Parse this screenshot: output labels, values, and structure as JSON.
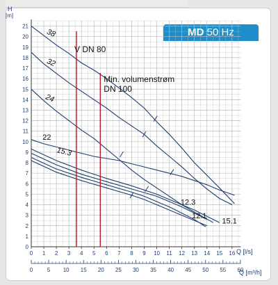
{
  "badge": {
    "model": "MD",
    "freq": "50 Hz",
    "color": "#1d8ec9"
  },
  "chart_data": {
    "type": "line",
    "title": "MD 50 Hz",
    "ylabel": "H",
    "yunit": "[m]",
    "xlabel": "Q [l/s]",
    "x2label": "Q [m³/h]",
    "xlim": [
      0,
      16.7
    ],
    "ylim": [
      0,
      21.5
    ],
    "xticks": [
      0,
      1,
      2,
      3,
      4,
      5,
      6,
      7,
      8,
      9,
      10,
      11,
      12,
      13,
      14,
      15,
      16
    ],
    "x2ticks": [
      0,
      5,
      10,
      15,
      20,
      25,
      30,
      35,
      40,
      45,
      50,
      55,
      60
    ],
    "yticks": [
      0,
      1,
      2,
      3,
      4,
      5,
      6,
      7,
      8,
      9,
      10,
      11,
      12,
      13,
      14,
      15,
      16,
      17,
      18,
      19,
      20,
      21
    ],
    "grid": true,
    "colors": {
      "curve": "#1e3f6e",
      "limit": "#c4162a",
      "grid": "#bbbbbb"
    },
    "vertical_lines": [
      {
        "label": "V DN 80",
        "x": 3.6
      },
      {
        "label": "Min. volumenstrøm DN 100",
        "label_line1": "Min. volumenstrøm",
        "label_line2": "DN 100",
        "x": 5.5
      }
    ],
    "series": [
      {
        "name": "38",
        "x": [
          0,
          1,
          2,
          3,
          4,
          5,
          6,
          7,
          8,
          9,
          10,
          11,
          12,
          13,
          14,
          15,
          16.2
        ],
        "y": [
          21.0,
          20.1,
          19.2,
          18.4,
          17.5,
          16.8,
          16.0,
          15.1,
          14.2,
          13.2,
          11.9,
          10.7,
          9.4,
          8.0,
          6.8,
          5.6,
          4.1
        ]
      },
      {
        "name": "32",
        "x": [
          0,
          1,
          2,
          3,
          4,
          5,
          6,
          7,
          8,
          9,
          10,
          11,
          12,
          13,
          14,
          15,
          16.0
        ],
        "y": [
          18.5,
          17.4,
          16.5,
          15.6,
          14.8,
          14.0,
          13.2,
          12.3,
          11.5,
          10.7,
          9.6,
          8.6,
          7.6,
          6.5,
          5.5,
          4.6,
          4.0
        ]
      },
      {
        "name": "24",
        "x": [
          0,
          1,
          2,
          3,
          4,
          5,
          6,
          7,
          8,
          9,
          10,
          11,
          12,
          13,
          14.5
        ],
        "y": [
          15.0,
          13.9,
          12.9,
          12.0,
          11.1,
          10.3,
          9.3,
          8.3,
          7.3,
          6.4,
          5.6,
          4.8,
          4.0,
          3.3,
          2.3
        ]
      },
      {
        "name": "22",
        "x": [
          0,
          1,
          2,
          3,
          4,
          5,
          6,
          7,
          8,
          9,
          10,
          11,
          12,
          13,
          14,
          15,
          16.2
        ],
        "y": [
          10.2,
          9.8,
          9.5,
          9.2,
          8.9,
          8.6,
          8.4,
          8.2,
          7.9,
          7.6,
          7.3,
          7.0,
          6.7,
          6.3,
          5.9,
          5.4,
          4.9
        ]
      },
      {
        "name": "15.1",
        "x": [
          0,
          2,
          4,
          6,
          8,
          10,
          11,
          12,
          13,
          14,
          15.0
        ],
        "y": [
          9.3,
          8.2,
          7.3,
          6.5,
          5.8,
          5.0,
          4.5,
          4.0,
          3.5,
          2.9,
          2.3
        ]
      },
      {
        "name": "15.3",
        "x": [
          0,
          2,
          4,
          6,
          8,
          10,
          11,
          12,
          13,
          14.0
        ],
        "y": [
          8.9,
          7.8,
          6.9,
          6.2,
          5.5,
          4.8,
          4.3,
          3.8,
          3.2,
          2.6
        ]
      },
      {
        "name": "12.3",
        "x": [
          0,
          2,
          4,
          6,
          8,
          9,
          10,
          11,
          12,
          13,
          13.9
        ],
        "y": [
          8.5,
          7.4,
          6.6,
          5.9,
          5.2,
          4.8,
          4.3,
          3.8,
          3.2,
          2.6,
          1.9
        ]
      },
      {
        "name": "12.1",
        "x": [
          0,
          2,
          4,
          6,
          8,
          9,
          10,
          11,
          12,
          13,
          14.0
        ],
        "y": [
          8.2,
          7.1,
          6.3,
          5.6,
          4.9,
          4.5,
          4.0,
          3.5,
          3.0,
          2.5,
          2.0
        ]
      }
    ],
    "curve_labels": [
      {
        "name": "38",
        "x": 1.2,
        "y": 20.3,
        "rotate": 24
      },
      {
        "name": "32",
        "x": 1.2,
        "y": 17.5,
        "rotate": 24
      },
      {
        "name": "24",
        "x": 1.1,
        "y": 14.1,
        "rotate": 24
      },
      {
        "name": "22",
        "x": 0.9,
        "y": 10.2,
        "rotate": 0
      },
      {
        "name": "15.3",
        "x": 2.0,
        "y": 9.0,
        "rotate": 14
      },
      {
        "name": "12.3",
        "x": 11.9,
        "y": 4.0,
        "rotate": 0
      },
      {
        "name": "12.1",
        "x": 12.8,
        "y": 2.7,
        "rotate": 0
      },
      {
        "name": "15.1",
        "x": 15.2,
        "y": 2.2,
        "rotate": 0
      }
    ],
    "markers": [
      {
        "x": 9.9,
        "y": 12.2
      },
      {
        "x": 9.0,
        "y": 10.7
      },
      {
        "x": 7.2,
        "y": 8.8
      },
      {
        "x": 11.2,
        "y": 7.1
      },
      {
        "x": 9.2,
        "y": 5.5
      },
      {
        "x": 8.0,
        "y": 4.9
      }
    ]
  }
}
